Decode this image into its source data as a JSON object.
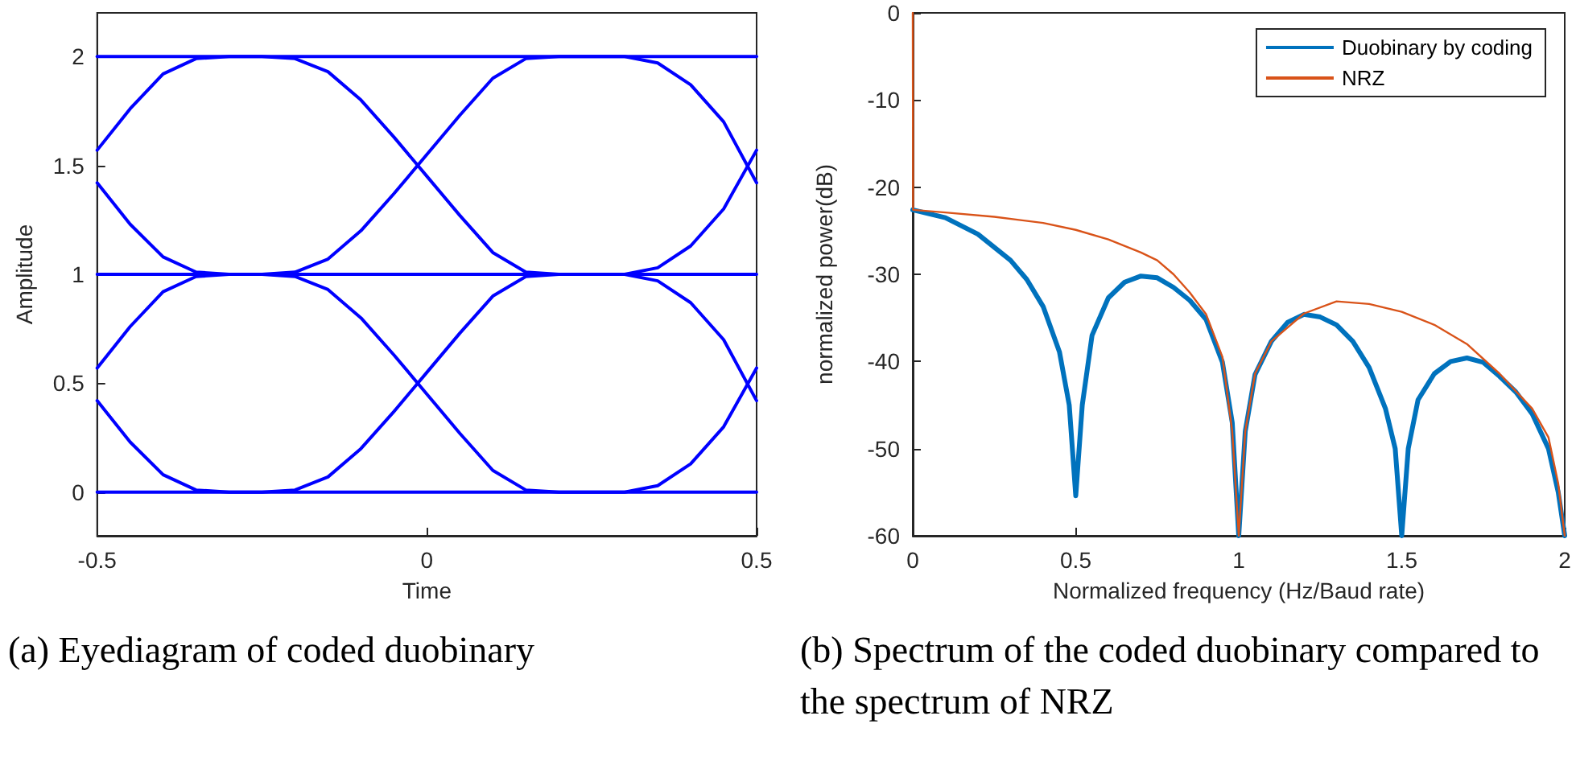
{
  "chart_data": [
    {
      "type": "line",
      "xlabel": "Time",
      "ylabel": "Amplitude",
      "xlim": [
        -0.5,
        0.5
      ],
      "xticks": [
        -0.5,
        0,
        0.5
      ],
      "ylim": [
        -0.2,
        2.2
      ],
      "yticks": [
        0,
        0.5,
        1,
        1.5,
        2
      ],
      "grid": false,
      "legend": false,
      "marker": "none",
      "line_style": "solid",
      "annotations": [
        "(a) Eyediagram of coded duobinary"
      ],
      "series": [
        {
          "color": "#0000ff",
          "x": [
            -0.5,
            -0.45,
            -0.4,
            -0.35,
            -0.3,
            -0.25,
            -0.2,
            -0.15,
            -0.1,
            -0.05,
            0,
            0.05,
            0.1,
            0.15,
            0.2,
            0.25,
            0.3,
            0.35,
            0.4,
            0.45,
            0.5
          ],
          "values": [
            1.57,
            1.76,
            1.92,
            1.99,
            2.0,
            2.0,
            1.99,
            1.93,
            1.8,
            1.63,
            1.45,
            1.27,
            1.1,
            1.01,
            1.0,
            1.0,
            1.0,
            1.03,
            1.13,
            1.3,
            1.57
          ]
        },
        {
          "color": "#0000ff",
          "x": [
            -0.5,
            -0.45,
            -0.4,
            -0.35,
            -0.3,
            -0.25,
            -0.2,
            -0.15,
            -0.1,
            -0.05,
            0,
            0.05,
            0.1,
            0.15,
            0.2,
            0.25,
            0.3,
            0.35,
            0.4,
            0.45,
            0.5
          ],
          "values": [
            1.42,
            1.23,
            1.08,
            1.01,
            1.0,
            1.0,
            1.01,
            1.07,
            1.2,
            1.37,
            1.55,
            1.73,
            1.9,
            1.99,
            2.0,
            2.0,
            2.0,
            1.97,
            1.87,
            1.7,
            1.42
          ]
        },
        {
          "color": "#0000ff",
          "x": [
            -0.5,
            -0.45,
            -0.4,
            -0.35,
            -0.3,
            -0.25,
            -0.2,
            -0.15,
            -0.1,
            -0.05,
            0,
            0.05,
            0.1,
            0.15,
            0.2,
            0.25,
            0.3,
            0.35,
            0.4,
            0.45,
            0.5
          ],
          "values": [
            0.57,
            0.76,
            0.92,
            0.99,
            1.0,
            1.0,
            0.99,
            0.93,
            0.8,
            0.63,
            0.45,
            0.27,
            0.1,
            0.01,
            0.0,
            0.0,
            0.0,
            0.03,
            0.13,
            0.3,
            0.57
          ]
        },
        {
          "color": "#0000ff",
          "x": [
            -0.5,
            -0.45,
            -0.4,
            -0.35,
            -0.3,
            -0.25,
            -0.2,
            -0.15,
            -0.1,
            -0.05,
            0,
            0.05,
            0.1,
            0.15,
            0.2,
            0.25,
            0.3,
            0.35,
            0.4,
            0.45,
            0.5
          ],
          "values": [
            0.42,
            0.23,
            0.08,
            0.01,
            0.0,
            0.0,
            0.01,
            0.07,
            0.2,
            0.37,
            0.55,
            0.73,
            0.9,
            0.99,
            1.0,
            1.0,
            1.0,
            0.97,
            0.87,
            0.7,
            0.42
          ]
        },
        {
          "color": "#0000ff",
          "x": [
            -0.5,
            0.5
          ],
          "values": [
            2,
            2
          ]
        },
        {
          "color": "#0000ff",
          "x": [
            -0.5,
            0.5
          ],
          "values": [
            1,
            1
          ]
        },
        {
          "color": "#0000ff",
          "x": [
            -0.5,
            0.5
          ],
          "values": [
            0,
            0
          ]
        }
      ]
    },
    {
      "type": "line",
      "xlabel": "Normalized frequency (Hz/Baud rate)",
      "ylabel": "normalized power(dB)",
      "xlim": [
        0,
        2
      ],
      "xticks": [
        0,
        0.5,
        1,
        1.5,
        2
      ],
      "ylim": [
        -60,
        0
      ],
      "yticks": [
        -60,
        -50,
        -40,
        -30,
        -20,
        -10,
        0
      ],
      "grid": false,
      "legend": "top right",
      "marker": "none",
      "line_style": "solid",
      "annotations": [
        "(b) Spectrum of the coded duobinary compared to the spectrum of NRZ"
      ],
      "series": [
        {
          "name": "Duobinary by coding",
          "color": "#0072bd",
          "x": [
            0,
            0.1,
            0.2,
            0.3,
            0.35,
            0.4,
            0.45,
            0.48,
            0.5,
            0.52,
            0.55,
            0.6,
            0.65,
            0.7,
            0.75,
            0.8,
            0.85,
            0.9,
            0.95,
            0.98,
            1.0,
            1.02,
            1.05,
            1.1,
            1.15,
            1.2,
            1.25,
            1.3,
            1.35,
            1.4,
            1.45,
            1.48,
            1.5,
            1.52,
            1.55,
            1.6,
            1.65,
            1.7,
            1.75,
            1.8,
            1.85,
            1.9,
            1.95,
            1.98,
            2.0
          ],
          "values": [
            -22.6,
            -23.5,
            -25.4,
            -28.4,
            -30.6,
            -33.7,
            -38.9,
            -45,
            -55.4,
            -45,
            -37,
            -32.7,
            -30.9,
            -30.2,
            -30.4,
            -31.5,
            -33,
            -35.2,
            -40.1,
            -47,
            -60,
            -48,
            -41.5,
            -37.7,
            -35.5,
            -34.6,
            -34.9,
            -35.8,
            -37.7,
            -40.7,
            -45.4,
            -50,
            -60,
            -50,
            -44.4,
            -41.4,
            -40,
            -39.6,
            -40.1,
            -41.7,
            -43.5,
            -46,
            -50,
            -55,
            -60
          ]
        },
        {
          "name": "NRZ",
          "color": "#d95319",
          "x": [
            0,
            0.001,
            0.1,
            0.25,
            0.4,
            0.5,
            0.6,
            0.7,
            0.75,
            0.8,
            0.85,
            0.9,
            0.95,
            0.98,
            1.0,
            1.02,
            1.05,
            1.1,
            1.2,
            1.3,
            1.4,
            1.5,
            1.6,
            1.7,
            1.8,
            1.9,
            1.95,
            1.98,
            2.0
          ],
          "values": [
            0,
            -22.6,
            -22.9,
            -23.4,
            -24.1,
            -24.9,
            -26,
            -27.5,
            -28.4,
            -30,
            -32.1,
            -34.6,
            -39.5,
            -48,
            -60,
            -48,
            -41.4,
            -37.7,
            -34.5,
            -33.1,
            -33.4,
            -34.3,
            -35.8,
            -38,
            -41.4,
            -45.4,
            -48.7,
            -54,
            -60
          ]
        }
      ]
    }
  ]
}
